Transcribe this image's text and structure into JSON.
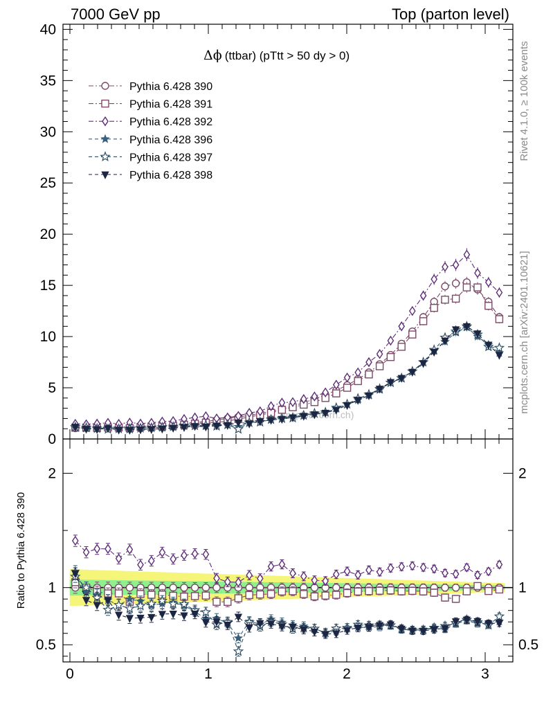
{
  "header": {
    "left": "7000 GeV pp",
    "right": "Top (parton level)"
  },
  "side_labels": {
    "rivet": "Rivet 4.1.0, ≥ 100k events",
    "mcplots": "mcplots.cern.ch [arXiv:2401.10621]"
  },
  "chart_data": {
    "type": "line",
    "title": "Δϕ (ttbar) (pTtt > 50 dy > 0)",
    "title_symbol": "Δϕ",
    "title_rest": "(ttbar) (pTtt > 50 dy > 0)",
    "watermark": "(mcplots.cern.ch)",
    "xlabel": "",
    "ylabel": "",
    "xlim": [
      -0.05,
      3.2
    ],
    "ylim": [
      0,
      40.5
    ],
    "xticks": [
      "0",
      "1",
      "2",
      "3"
    ],
    "yticks": [
      "0",
      "5",
      "10",
      "15",
      "20",
      "25",
      "30",
      "35",
      "40"
    ],
    "ratio": {
      "ylabel": "Ratio to Pythia 6.428 390",
      "ylim": [
        0.35,
        2.3
      ],
      "yticks": [
        "0.5",
        "1",
        "2"
      ],
      "band_inner_halfwidth": [
        0.07,
        0.02
      ],
      "band_outer_halfwidth": [
        0.16,
        0.04
      ]
    },
    "x": [
      0.039,
      0.118,
      0.196,
      0.275,
      0.353,
      0.432,
      0.51,
      0.589,
      0.667,
      0.746,
      0.825,
      0.903,
      0.982,
      1.06,
      1.139,
      1.217,
      1.296,
      1.374,
      1.453,
      1.532,
      1.61,
      1.689,
      1.767,
      1.846,
      1.924,
      2.003,
      2.081,
      2.16,
      2.238,
      2.317,
      2.396,
      2.474,
      2.553,
      2.631,
      2.71,
      2.788,
      2.867,
      2.945,
      3.024,
      3.102
    ],
    "series": [
      {
        "name": "Pythia 6.428 390",
        "color": "#7b4a68",
        "marker": "circle-open",
        "line": "dashdot",
        "values": [
          1.05,
          1.1,
          1.12,
          1.18,
          1.18,
          1.2,
          1.25,
          1.28,
          1.3,
          1.4,
          1.52,
          1.62,
          1.72,
          1.85,
          2.0,
          2.15,
          2.3,
          2.5,
          2.7,
          2.95,
          3.2,
          3.55,
          3.9,
          4.3,
          4.75,
          5.25,
          5.85,
          6.5,
          7.3,
          8.2,
          9.3,
          10.5,
          11.9,
          13.4,
          14.9,
          15.2,
          15.3,
          14.6,
          13.4,
          11.9
        ]
      },
      {
        "name": "Pythia 6.428 391",
        "color": "#7b4a68",
        "marker": "square-open",
        "line": "dashdot",
        "values": [
          1.1,
          1.1,
          1.08,
          1.12,
          1.12,
          1.05,
          1.18,
          1.2,
          1.22,
          1.3,
          1.4,
          1.5,
          1.6,
          1.62,
          1.75,
          1.95,
          2.15,
          2.35,
          2.55,
          2.85,
          3.1,
          3.35,
          3.6,
          4.0,
          4.45,
          5.0,
          5.65,
          6.3,
          7.1,
          8.0,
          9.0,
          10.2,
          11.5,
          12.8,
          13.6,
          13.7,
          14.8,
          14.8,
          13.0,
          11.7
        ]
      },
      {
        "name": "Pythia 6.428 392",
        "color": "#5e2d79",
        "marker": "diamond-open",
        "line": "dashdot",
        "values": [
          1.48,
          1.44,
          1.5,
          1.58,
          1.48,
          1.6,
          1.5,
          1.58,
          1.7,
          1.75,
          1.95,
          2.1,
          2.22,
          2.0,
          2.1,
          2.25,
          2.55,
          2.7,
          3.2,
          3.55,
          3.6,
          3.9,
          4.15,
          4.55,
          5.3,
          6.0,
          6.5,
          7.5,
          8.3,
          9.6,
          11.0,
          12.5,
          14.0,
          15.6,
          16.8,
          17.0,
          18.0,
          16.2,
          15.3,
          14.3
        ]
      },
      {
        "name": "Pythia 6.428 396",
        "color": "#3a5f7a",
        "marker": "star-filled",
        "line": "dashed",
        "values": [
          1.2,
          1.05,
          1.05,
          1.05,
          1.0,
          1.08,
          1.1,
          1.08,
          1.12,
          1.22,
          1.28,
          1.28,
          1.25,
          1.35,
          1.38,
          1.2,
          1.62,
          1.7,
          1.95,
          2.05,
          2.15,
          2.35,
          2.5,
          2.6,
          2.95,
          3.4,
          3.8,
          4.25,
          4.8,
          5.5,
          5.9,
          6.6,
          7.5,
          8.6,
          9.5,
          10.4,
          10.9,
          10.0,
          9.2,
          8.4
        ]
      },
      {
        "name": "Pythia 6.428 397",
        "color": "#2e4e63",
        "marker": "star-open",
        "line": "dashed",
        "values": [
          1.15,
          1.1,
          1.02,
          0.95,
          1.0,
          0.98,
          1.05,
          1.1,
          1.15,
          1.2,
          1.3,
          1.3,
          1.35,
          1.25,
          1.4,
          0.95,
          1.6,
          1.65,
          1.9,
          2.0,
          2.05,
          2.3,
          2.5,
          2.6,
          3.05,
          3.4,
          3.95,
          4.35,
          4.9,
          5.5,
          5.95,
          6.6,
          7.5,
          8.7,
          9.9,
          10.5,
          11.0,
          10.2,
          9.0,
          8.9
        ]
      },
      {
        "name": "Pythia 6.428 398",
        "color": "#1c2541",
        "marker": "triangle-down-filled",
        "line": "dashed",
        "values": [
          1.18,
          0.98,
          0.95,
          1.05,
          0.9,
          0.88,
          0.92,
          0.95,
          1.0,
          1.08,
          1.15,
          1.25,
          1.2,
          1.3,
          1.35,
          1.6,
          1.5,
          1.72,
          1.85,
          1.95,
          2.1,
          2.25,
          2.4,
          2.55,
          2.85,
          3.3,
          3.8,
          4.25,
          4.9,
          5.55,
          5.95,
          6.55,
          7.4,
          8.5,
          9.6,
          10.7,
          11.0,
          10.3,
          9.2,
          8.2
        ]
      }
    ]
  }
}
